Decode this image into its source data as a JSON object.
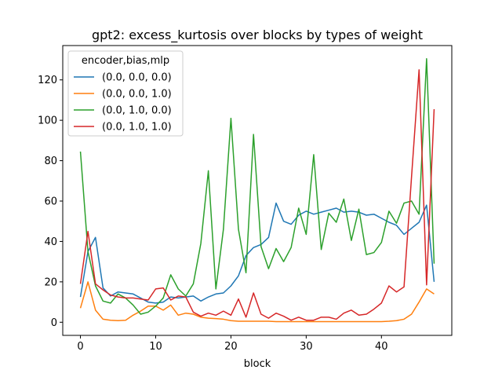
{
  "chart_data": {
    "type": "line",
    "title": "gpt2: excess_kurtosis over blocks by types of weight",
    "xlabel": "block",
    "ylabel": "",
    "xlim": [
      -2.35,
      49.35
    ],
    "ylim": [
      -6.5,
      137.0
    ],
    "xticks": [
      0,
      10,
      20,
      30,
      40
    ],
    "yticks": [
      0,
      20,
      40,
      60,
      80,
      100,
      120
    ],
    "grid": false,
    "legend": {
      "title": "encoder,bias,mlp",
      "placement": "top-left"
    },
    "x": [
      0,
      1,
      2,
      3,
      4,
      5,
      6,
      7,
      8,
      9,
      10,
      11,
      12,
      13,
      14,
      15,
      16,
      17,
      18,
      19,
      20,
      21,
      22,
      23,
      24,
      25,
      26,
      27,
      28,
      29,
      30,
      31,
      32,
      33,
      34,
      35,
      36,
      37,
      38,
      39,
      40,
      41,
      42,
      43,
      44,
      45,
      46,
      47
    ],
    "series": [
      {
        "name": "(0.0, 0.0, 0.0)",
        "color": "#1f77b4",
        "values": [
          12.5,
          35,
          42,
          17,
          13,
          15,
          14.5,
          14,
          12,
          10,
          9.5,
          10,
          12.5,
          12,
          12.5,
          13,
          10.5,
          12.5,
          14,
          14.5,
          18,
          23,
          33,
          37,
          38.5,
          42,
          59,
          50,
          48.5,
          53,
          55,
          53.5,
          54.5,
          55.5,
          56.5,
          54.5,
          55,
          54.5,
          53,
          53.5,
          51.5,
          49.5,
          48,
          43.5,
          46.5,
          49.5,
          58,
          20
        ]
      },
      {
        "name": "(0.0, 0.0, 1.0)",
        "color": "#ff7f0e",
        "values": [
          7,
          20,
          6,
          1.5,
          1,
          0.8,
          1,
          3.5,
          5.5,
          8,
          8,
          6,
          8.5,
          3.5,
          4.5,
          4,
          2.5,
          2,
          1.8,
          1.5,
          0.8,
          0.5,
          0.5,
          0.5,
          0.5,
          0.5,
          0.3,
          0.3,
          0.3,
          0.3,
          0.3,
          0.3,
          0.3,
          0.3,
          0.3,
          0.3,
          0.3,
          0.3,
          0.3,
          0.3,
          0.3,
          0.5,
          0.8,
          1.5,
          4,
          10,
          16.5,
          14
        ]
      },
      {
        "name": "(0.0, 1.0, 0.0)",
        "color": "#2ca02c",
        "values": [
          84.5,
          35,
          18,
          10.5,
          9.5,
          14,
          12,
          8.5,
          4,
          5,
          8,
          12,
          23.5,
          16.5,
          13,
          19,
          39,
          75,
          16.5,
          46,
          101,
          46,
          24.5,
          93,
          37.5,
          26.5,
          36.5,
          30,
          37,
          56.5,
          43.5,
          83,
          36,
          54,
          49.5,
          61,
          40.5,
          56,
          33.5,
          34.5,
          39.5,
          55,
          49,
          59,
          60,
          53.5,
          130.5,
          29
        ]
      },
      {
        "name": "(0.0, 1.0, 1.0)",
        "color": "#d62728",
        "values": [
          19,
          45,
          19,
          16,
          13.5,
          12.5,
          12,
          12,
          11.5,
          11,
          16.5,
          17,
          11,
          13,
          12.5,
          5,
          3,
          4.5,
          3.5,
          5.5,
          3.5,
          11.5,
          2.5,
          14.5,
          4,
          2,
          4.5,
          3,
          1,
          2.5,
          1,
          1,
          2.5,
          2.5,
          1.5,
          4.5,
          6,
          3.5,
          4,
          6.5,
          9.5,
          18,
          15,
          17.5,
          72,
          125,
          18.5,
          105.5
        ]
      }
    ]
  }
}
